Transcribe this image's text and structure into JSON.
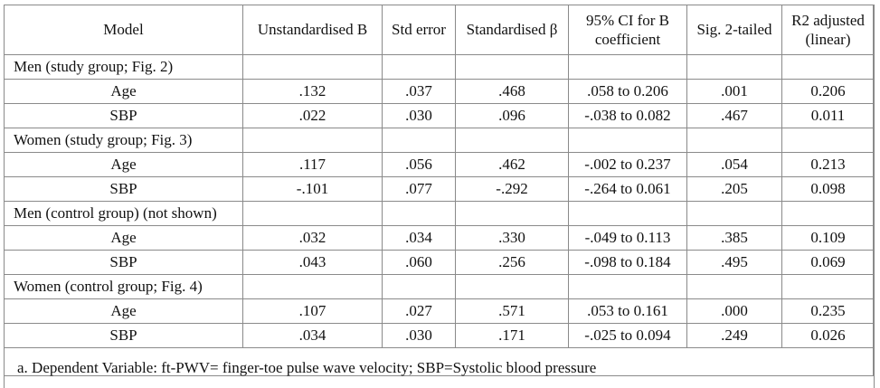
{
  "headers": [
    "Model",
    "Unstandardised B",
    "Std error",
    "Standardised β",
    "95% CI for B coefficient",
    "Sig. 2-tailed",
    "R2 adjusted (linear)"
  ],
  "groups": [
    {
      "label": "Men (study group; Fig. 2)",
      "rows": [
        [
          "Age",
          ".132",
          ".037",
          ".468",
          ".058 to 0.206",
          ".001",
          "0.206"
        ],
        [
          "SBP",
          ".022",
          ".030",
          ".096",
          "-.038 to 0.082",
          ".467",
          "0.011"
        ]
      ]
    },
    {
      "label": "Women (study group; Fig. 3)",
      "rows": [
        [
          "Age",
          ".117",
          ".056",
          ".462",
          "-.002 to 0.237",
          ".054",
          "0.213"
        ],
        [
          "SBP",
          "-.101",
          ".077",
          "-.292",
          "-.264 to 0.061",
          ".205",
          "0.098"
        ]
      ]
    },
    {
      "label": "Men (control group) (not shown)",
      "rows": [
        [
          "Age",
          ".032",
          ".034",
          ".330",
          "-.049 to 0.113",
          ".385",
          "0.109"
        ],
        [
          "SBP",
          ".043",
          ".060",
          ".256",
          "-.098 to 0.184",
          ".495",
          "0.069"
        ]
      ]
    },
    {
      "label": "Women (control group; Fig. 4)",
      "rows": [
        [
          "Age",
          ".107",
          ".027",
          ".571",
          ".053 to 0.161",
          ".000",
          "0.235"
        ],
        [
          "SBP",
          ".034",
          ".030",
          ".171",
          "-.025 to 0.094",
          ".249",
          "0.026"
        ]
      ]
    }
  ],
  "footnote": "a. Dependent Variable: ft-PWV= finger-toe pulse wave velocity; SBP=Systolic blood pressure"
}
